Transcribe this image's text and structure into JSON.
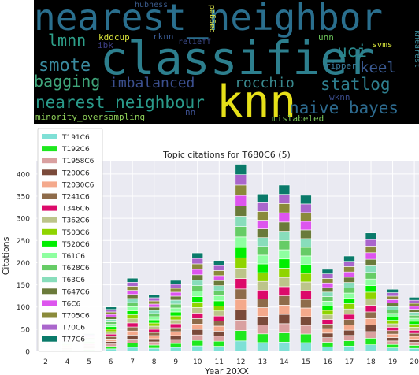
{
  "wordcloud": {
    "words": [
      {
        "text": "nearest_neighbor",
        "color": "#2a6f8e"
      },
      {
        "text": "classifier",
        "color": "#2d7f8e"
      },
      {
        "text": "knn",
        "color": "#e6e019"
      },
      {
        "text": "nearest_neighbour",
        "color": "#2a9a8a"
      },
      {
        "text": "smote",
        "color": "#3a8ba0"
      },
      {
        "text": "bagging",
        "color": "#3fa57a"
      },
      {
        "text": "imbalanced",
        "color": "#3b4f8e"
      },
      {
        "text": "rocchio",
        "color": "#3a8a8f"
      },
      {
        "text": "statlog",
        "color": "#2e7f8f"
      },
      {
        "text": "naive_bayes",
        "color": "#2d6a8e"
      },
      {
        "text": "keel",
        "color": "#3a5a93"
      },
      {
        "text": "uci",
        "color": "#2b8a8e"
      },
      {
        "text": "lmnn",
        "color": "#2ea08a"
      },
      {
        "text": "kddcup",
        "color": "#d8e23a"
      },
      {
        "text": "rknn",
        "color": "#3a5a93"
      },
      {
        "text": "relieff",
        "color": "#3c4a8a"
      },
      {
        "text": "ibk",
        "color": "#3e3f86"
      },
      {
        "text": "hubness",
        "color": "#3a5a8a"
      },
      {
        "text": "bagged",
        "color": "#d9e34a"
      },
      {
        "text": "unn",
        "color": "#6cc35a"
      },
      {
        "text": "svms",
        "color": "#d4e13a"
      },
      {
        "text": "ripper",
        "color": "#3a7a9a"
      },
      {
        "text": "knearest",
        "color": "#3a8a9a"
      },
      {
        "text": "wknn",
        "color": "#3a4b8a"
      },
      {
        "text": "minority_oversampling",
        "color": "#8fd05a"
      },
      {
        "text": "nn",
        "color": "#3d5090"
      },
      {
        "text": "mislabeled",
        "color": "#7bc65a"
      }
    ]
  },
  "chart_data": {
    "type": "bar",
    "stacked": true,
    "title": "Topic citations for T680C6 (5)",
    "xlabel": "Year 20XX",
    "ylabel": "Citations",
    "ylim": [
      0,
      430
    ],
    "yticks": [
      0,
      50,
      100,
      150,
      200,
      250,
      300,
      350,
      400
    ],
    "categories": [
      "2",
      "4",
      "5",
      "6",
      "7",
      "8",
      "9",
      "10",
      "11",
      "12",
      "13",
      "14",
      "15",
      "16",
      "17",
      "18",
      "19",
      "20"
    ],
    "totals": [
      8,
      30,
      40,
      100,
      165,
      128,
      160,
      222,
      205,
      422,
      355,
      375,
      352,
      185,
      215,
      267,
      140,
      122
    ],
    "grid": true,
    "legend_placement": "upper-left",
    "series": [
      {
        "name": "T191C6",
        "color": "#7fe0d6"
      },
      {
        "name": "T192C6",
        "color": "#1ee81e"
      },
      {
        "name": "T1958C6",
        "color": "#d9a0a0"
      },
      {
        "name": "T200C6",
        "color": "#7a4a3a"
      },
      {
        "name": "T2030C6",
        "color": "#f4a98c"
      },
      {
        "name": "T241C6",
        "color": "#8e6b4a"
      },
      {
        "name": "T346C6",
        "color": "#dc0a6a"
      },
      {
        "name": "T362C6",
        "color": "#bcc48a"
      },
      {
        "name": "T503C6",
        "color": "#8fd400"
      },
      {
        "name": "T520C6",
        "color": "#00ee00"
      },
      {
        "name": "T61C6",
        "color": "#8effa0"
      },
      {
        "name": "T628C6",
        "color": "#66cc66"
      },
      {
        "name": "T63C6",
        "color": "#88ddbb"
      },
      {
        "name": "T647C6",
        "color": "#6a7a3a"
      },
      {
        "name": "T6C6",
        "color": "#dd55ee"
      },
      {
        "name": "T705C6",
        "color": "#8a8a3a"
      },
      {
        "name": "T70C6",
        "color": "#aa66cc"
      },
      {
        "name": "T77C6",
        "color": "#0a7a6a"
      }
    ]
  }
}
